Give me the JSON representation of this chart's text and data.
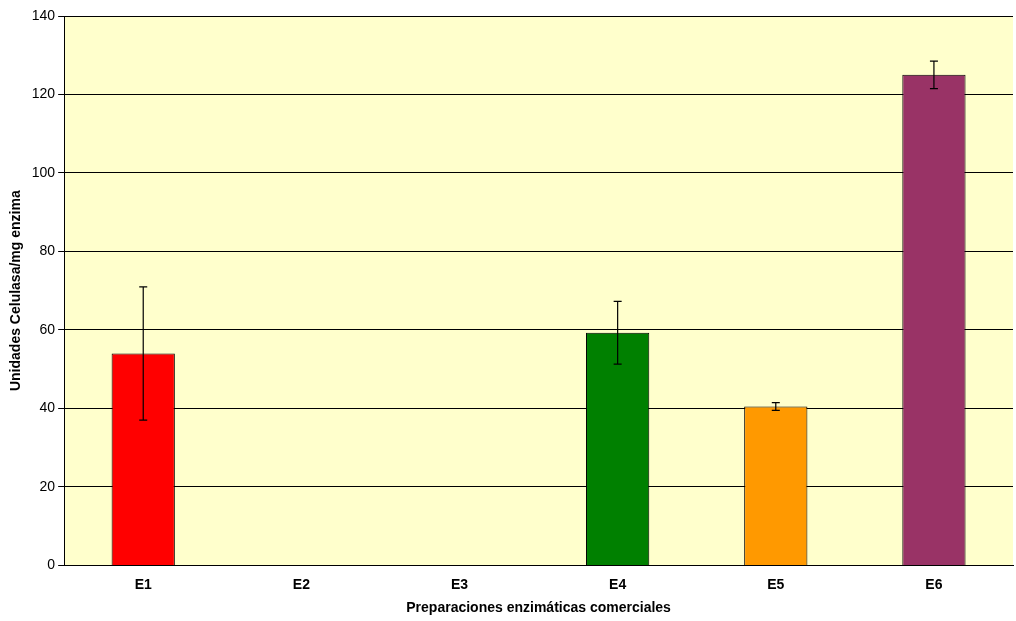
{
  "chart_data": {
    "type": "bar",
    "xlabel": "Preparaciones enzimáticas comerciales",
    "ylabel": "Unidades Celulasa/mg enzima",
    "categories": [
      "E1",
      "E2",
      "E3",
      "E4",
      "E5",
      "E6"
    ],
    "values": [
      54,
      0,
      0,
      59.3,
      40.5,
      125
    ],
    "errors": [
      17,
      null,
      null,
      8,
      1,
      3.5
    ],
    "colors": [
      "#ff0000",
      "#000080",
      "#000080",
      "#008000",
      "#ff9900",
      "#993366"
    ],
    "ylim": [
      0,
      140
    ],
    "yticks": [
      0,
      20,
      40,
      60,
      80,
      100,
      120,
      140
    ],
    "grid": "y",
    "legend": false
  }
}
